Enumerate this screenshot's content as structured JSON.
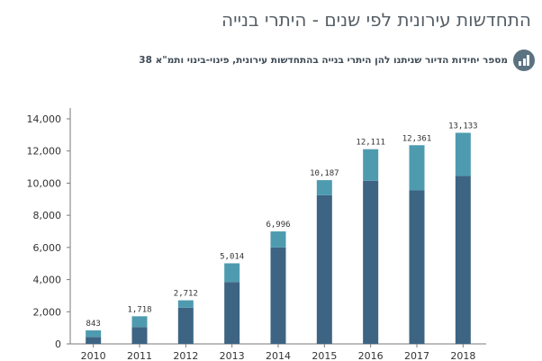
{
  "title": "התחדשות עירונית לפי שנים - היתרי בנייה",
  "subtitle": "מספר יחידות הדיור שניתנו להן היתרי בנייה בהתחדשות עירונית, פינוי-בינוי ותמ\"א 38",
  "icon": "bar-chart-icon",
  "colors": {
    "lower": "#3d6482",
    "upper": "#4e9bb0",
    "axis": "#7a7a7a"
  },
  "chart_data": {
    "type": "bar",
    "stacked": true,
    "categories": [
      "2010",
      "2011",
      "2012",
      "2013",
      "2014",
      "2015",
      "2016",
      "2017",
      "2018"
    ],
    "totals": [
      843,
      1718,
      2712,
      5014,
      6996,
      10187,
      12111,
      12361,
      13133
    ],
    "total_labels": [
      "843",
      "1,718",
      "2,712",
      "5,014",
      "6,996",
      "10,187",
      "12,111",
      "12,361",
      "13,133"
    ],
    "series": [
      {
        "values": [
          430,
          1050,
          2250,
          3850,
          6000,
          9250,
          10150,
          9550,
          10450
        ]
      },
      {
        "values": [
          413,
          668,
          462,
          1164,
          996,
          937,
          1961,
          2811,
          2683
        ]
      }
    ],
    "ylim": [
      0,
      14000
    ],
    "yticks": [
      0,
      2000,
      4000,
      6000,
      8000,
      10000,
      12000,
      14000
    ],
    "ytick_labels": [
      "0",
      "2,000",
      "4,000",
      "6,000",
      "8,000",
      "10,000",
      "12,000",
      "14,000"
    ],
    "grid": false,
    "legend": "none"
  }
}
